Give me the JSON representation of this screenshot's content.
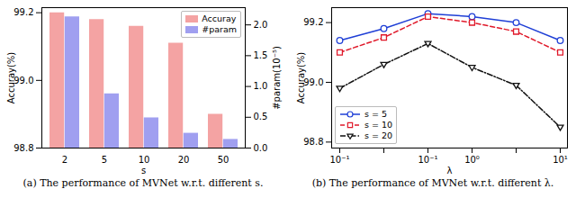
{
  "chart_data": [
    {
      "type": "bar",
      "title": "(a) The performance of MVNet w.r.t. different s.",
      "x_label": "s",
      "y_label": "Accuray(%)",
      "y2_label": "#param(10⁻⁵)",
      "categories": [
        "2",
        "5",
        "10",
        "20",
        "50"
      ],
      "series": [
        {
          "name": "Accuray",
          "color": "#f4a3a3",
          "values": [
            99.2,
            99.18,
            99.16,
            99.11,
            98.9
          ]
        },
        {
          "name": "#param",
          "color": "#a09ff0",
          "axis": "y2",
          "values": [
            2.13,
            0.88,
            0.49,
            0.24,
            0.14
          ]
        }
      ],
      "ylim": [
        98.8,
        99.215
      ],
      "yticks": [
        98.8,
        {
          "value": 99,
          "label": "99.0"
        },
        99.2
      ],
      "y2lim": [
        0,
        2.28
      ],
      "y2ticks": [
        {
          "value": 0,
          "label": "0.0"
        },
        0.5,
        {
          "value": 1,
          "label": "1.0"
        },
        1.5,
        {
          "value": 2,
          "label": "2.0"
        }
      ],
      "legend": "upper right",
      "grid": false
    },
    {
      "type": "line",
      "title": "(b) The performance of MVNet w.r.t. different λ.",
      "x_label": "λ",
      "y_label": "Accuray(%)",
      "categories": [
        "10⁻¹",
        null,
        "10⁻¹",
        "10⁰",
        null,
        "10¹"
      ],
      "series": [
        {
          "name": "s = 5",
          "color": "#1f3fd6",
          "marker": "circle",
          "line_style": "solid",
          "values": [
            99.14,
            99.18,
            99.23,
            99.22,
            99.2,
            99.14
          ]
        },
        {
          "name": "s = 10",
          "color": "#e0192a",
          "marker": "square",
          "line_style": "dashed",
          "values": [
            99.1,
            99.15,
            99.22,
            99.2,
            99.17,
            99.1
          ]
        },
        {
          "name": "s = 20",
          "color": "#111111",
          "marker": "triangle-down",
          "line_style": "dashdot",
          "values": [
            98.98,
            99.06,
            99.13,
            99.05,
            98.99,
            98.85
          ]
        }
      ],
      "ylim": [
        98.78,
        99.25
      ],
      "yticks": [
        98.8,
        {
          "value": 99,
          "label": "99.0"
        },
        99.2
      ],
      "legend": "lower left",
      "grid": false
    }
  ]
}
